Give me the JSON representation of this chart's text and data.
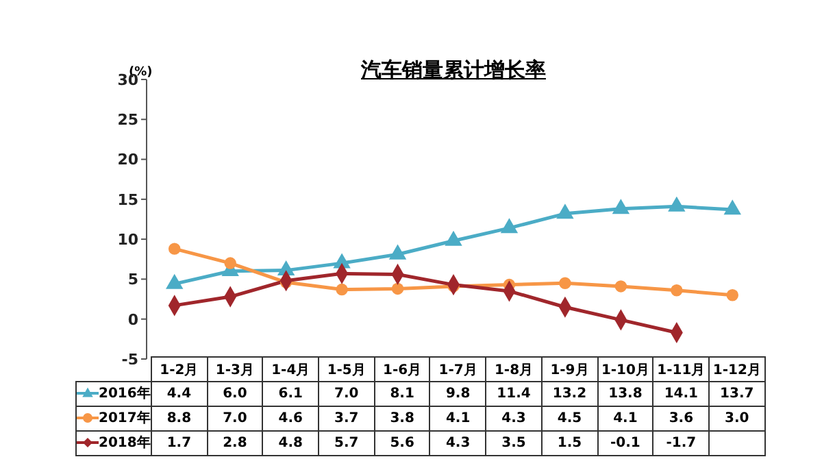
{
  "chart_data": {
    "type": "line",
    "title": "汽车销量累计增长率",
    "ylabel": "(%)",
    "categories": [
      "1-2月",
      "1-3月",
      "1-4月",
      "1-5月",
      "1-6月",
      "1-7月",
      "1-8月",
      "1-9月",
      "1-10月",
      "1-11月",
      "1-12月"
    ],
    "series": [
      {
        "name": "2016年",
        "color": "#4bacc6",
        "marker": "triangle",
        "values": [
          4.4,
          6.0,
          6.1,
          7.0,
          8.1,
          9.8,
          11.4,
          13.2,
          13.8,
          14.1,
          13.7
        ],
        "value_labels": [
          "4.4",
          "6.0",
          "6.1",
          "7.0",
          "8.1",
          "9.8",
          "11.4",
          "13.2",
          "13.8",
          "14.1",
          "13.7"
        ]
      },
      {
        "name": "2017年",
        "color": "#f79646",
        "marker": "circle",
        "values": [
          8.8,
          7.0,
          4.6,
          3.7,
          3.8,
          4.1,
          4.3,
          4.5,
          4.1,
          3.6,
          3.0
        ],
        "value_labels": [
          "8.8",
          "7.0",
          "4.6",
          "3.7",
          "3.8",
          "4.1",
          "4.3",
          "4.5",
          "4.1",
          "3.6",
          "3.0"
        ]
      },
      {
        "name": "2018年",
        "color": "#a0262b",
        "marker": "diamond",
        "values": [
          1.7,
          2.8,
          4.8,
          5.7,
          5.6,
          4.3,
          3.5,
          1.5,
          -0.1,
          -1.7,
          null
        ],
        "value_labels": [
          "1.7",
          "2.8",
          "4.8",
          "5.7",
          "5.6",
          "4.3",
          "3.5",
          "1.5",
          "-0.1",
          "-1.7",
          null
        ]
      }
    ],
    "ylim": [
      -5,
      30
    ],
    "yticks": [
      -5,
      0,
      5,
      10,
      15,
      20,
      25,
      30
    ],
    "grid": false,
    "legend": "bottom",
    "line_style": "solid"
  }
}
